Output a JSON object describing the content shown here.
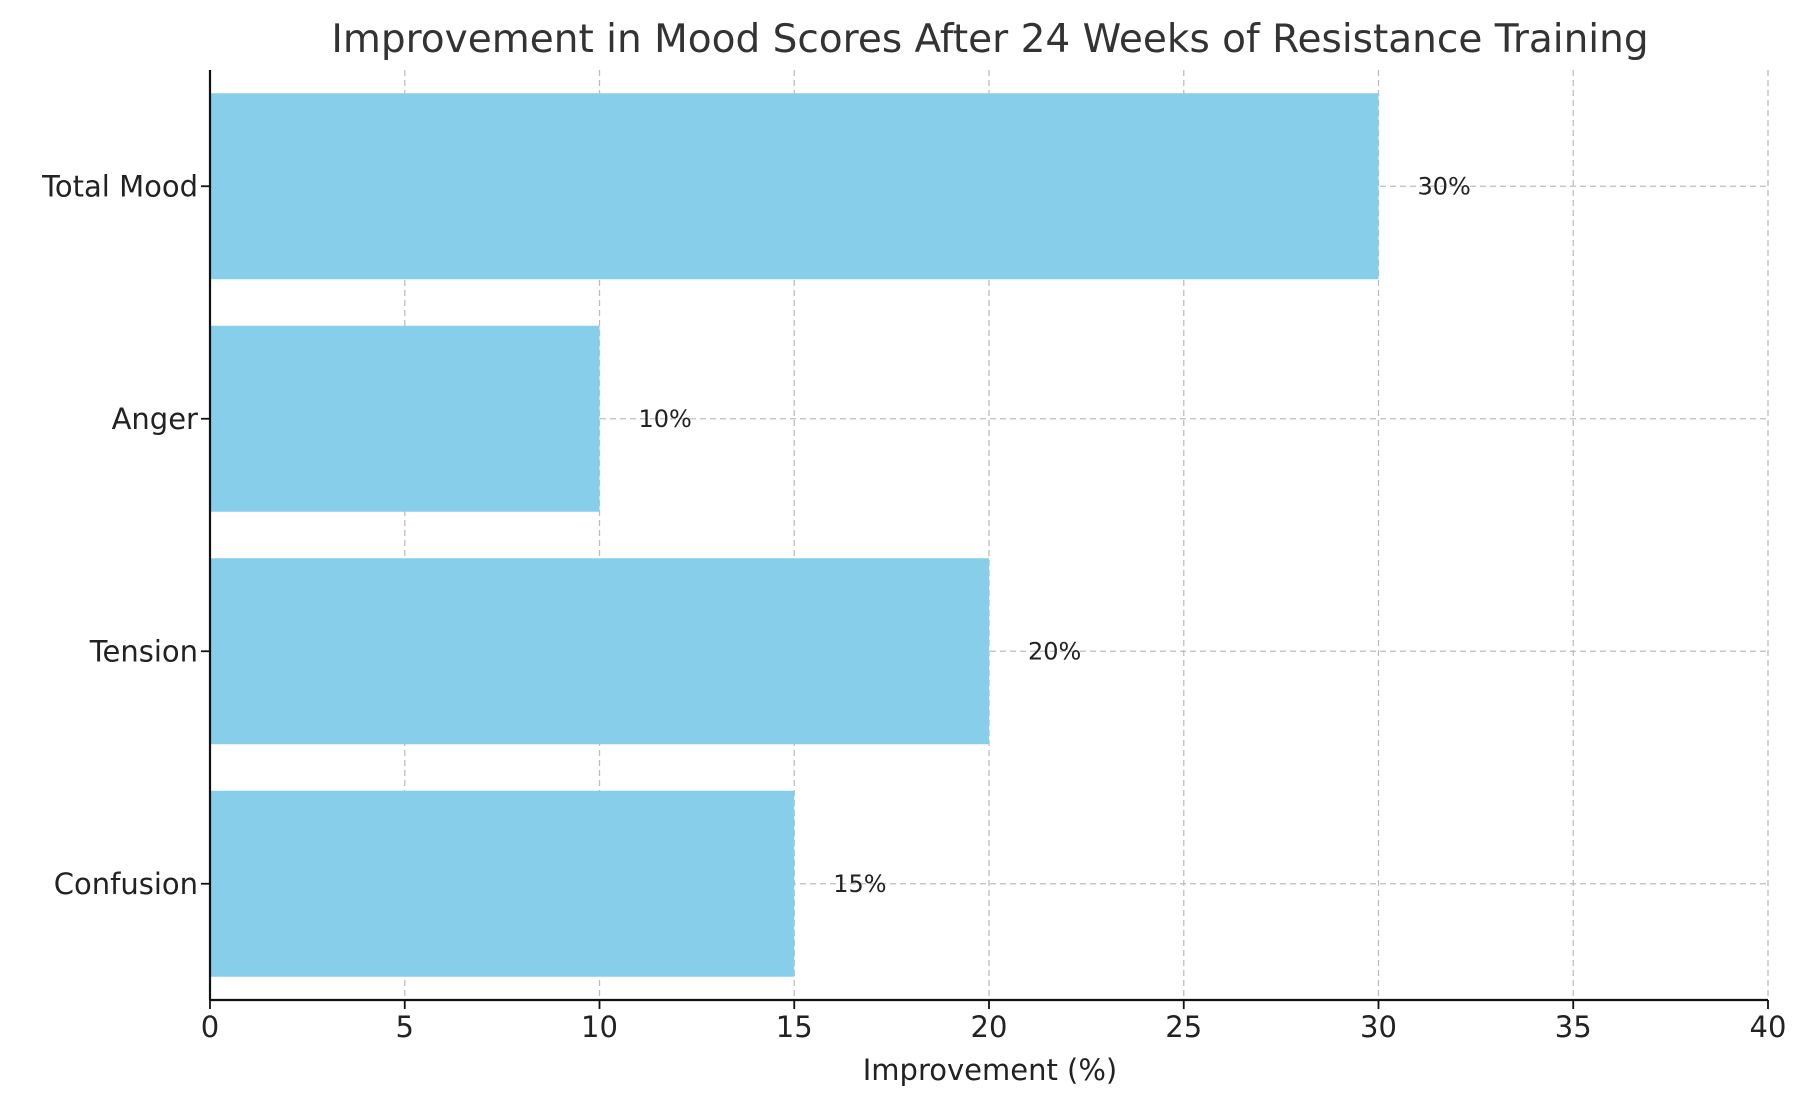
{
  "chart_data": {
    "type": "bar",
    "orientation": "horizontal",
    "title": "Improvement in Mood Scores After 24 Weeks of Resistance Training",
    "xlabel": "Improvement (%)",
    "ylabel": "",
    "categories": [
      "Confusion",
      "Tension",
      "Anger",
      "Total Mood"
    ],
    "values": [
      15,
      20,
      10,
      30
    ],
    "data_labels": [
      "15%",
      "20%",
      "10%",
      "30%"
    ],
    "xlim": [
      0,
      40
    ],
    "xticks": [
      0,
      5,
      10,
      15,
      20,
      25,
      30,
      35,
      40
    ],
    "grid": true,
    "legend": "none",
    "bar_color": "#87CEEB"
  }
}
